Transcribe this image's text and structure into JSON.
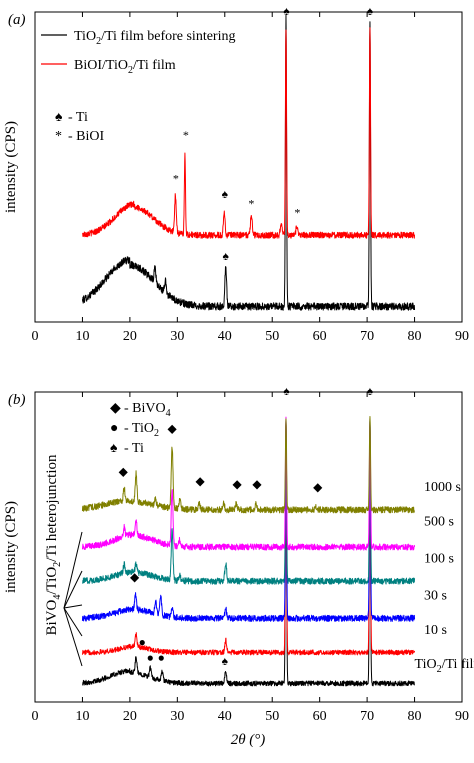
{
  "chart_data": [
    {
      "panel": "(a)",
      "type": "line",
      "xlabel": "",
      "ylabel": "intensity (CPS)",
      "xlim": [
        0,
        90
      ],
      "xticks": [
        0,
        10,
        20,
        30,
        40,
        50,
        60,
        70,
        80,
        90
      ],
      "grid": false,
      "legend_position": "top-left",
      "series": [
        {
          "name": "TiO2/Ti film before sintering",
          "color": "#000000",
          "baseline": 0.05,
          "x_range": [
            10,
            80
          ],
          "broad_humps": [
            [
              20,
              0.15,
              5
            ]
          ],
          "peaks": [
            [
              25.3,
              0.05
            ],
            [
              27.5,
              0.04
            ],
            [
              40.2,
              0.13
            ],
            [
              52.9,
              0.93
            ],
            [
              70.6,
              0.93
            ]
          ],
          "noise": 0.012
        },
        {
          "name": "BiOI/TiO2/Ti film",
          "color": "#ff0000",
          "baseline": 0.28,
          "x_range": [
            10,
            80
          ],
          "broad_humps": [
            [
              21,
              0.1,
              4
            ]
          ],
          "peaks": [
            [
              29.6,
              0.12
            ],
            [
              31.6,
              0.26
            ],
            [
              39.9,
              0.07
            ],
            [
              45.6,
              0.07
            ],
            [
              51.9,
              0.04
            ],
            [
              52.9,
              0.67
            ],
            [
              55.2,
              0.03
            ],
            [
              70.6,
              0.67
            ]
          ],
          "noise": 0.01
        }
      ],
      "annotations": [
        {
          "symbol": "♠",
          "x": 53,
          "y": 0.99
        },
        {
          "symbol": "♠",
          "x": 70.6,
          "y": 0.99
        },
        {
          "symbol": "♠",
          "x": 40.2,
          "y": 0.2
        },
        {
          "symbol": "♠",
          "x": 40,
          "y": 0.4
        },
        {
          "symbol": "*",
          "x": 29.7,
          "y": 0.45
        },
        {
          "symbol": "*",
          "x": 31.8,
          "y": 0.59
        },
        {
          "symbol": "*",
          "x": 45.6,
          "y": 0.37
        },
        {
          "symbol": "*",
          "x": 55.3,
          "y": 0.34
        }
      ],
      "markers_legend": [
        {
          "symbol": "♠",
          "label": "- Ti"
        },
        {
          "symbol": "*",
          "label": "- BiOI"
        }
      ],
      "legend": [
        {
          "label_main": "TiO",
          "label_sub": "2",
          "label_rest": "/Ti film before sintering",
          "color": "#000000"
        },
        {
          "label_main": "BiOI/TiO",
          "label_sub": "2",
          "label_rest": "/Ti film",
          "color": "#ff0000"
        }
      ]
    },
    {
      "panel": "(b)",
      "type": "line",
      "xlabel": "2θ (°)",
      "ylabel": "intensity (CPS)",
      "xlim": [
        0,
        90
      ],
      "xticks": [
        0,
        10,
        20,
        30,
        40,
        50,
        60,
        70,
        80,
        90
      ],
      "grid": false,
      "legend_position": "top-left",
      "side_label": "BiVO4/TiO2/Ti heterojunction",
      "series": [
        {
          "name": "TiO2/Ti film",
          "color": "#000000",
          "baseline": 0.06,
          "x_range": [
            10,
            80
          ],
          "broad_humps": [
            [
              20,
              0.04,
              4
            ]
          ],
          "peaks": [
            [
              21.3,
              0.05
            ],
            [
              24.3,
              0.03
            ],
            [
              26.8,
              0.03
            ],
            [
              40.2,
              0.04
            ],
            [
              52.9,
              0.85
            ],
            [
              70.6,
              0.85
            ]
          ],
          "noise": 0.008
        },
        {
          "name": "10 s",
          "color": "#ff0000",
          "baseline": 0.16,
          "x_range": [
            10,
            80
          ],
          "broad_humps": [
            [
              21,
              0.02,
              3
            ]
          ],
          "peaks": [
            [
              21.3,
              0.04
            ],
            [
              40.2,
              0.04
            ],
            [
              52.9,
              0.75
            ],
            [
              70.6,
              0.75
            ]
          ],
          "noise": 0.008
        },
        {
          "name": "30 s",
          "color": "#0000ff",
          "baseline": 0.27,
          "x_range": [
            10,
            80
          ],
          "broad_humps": [
            [
              21,
              0.03,
              4
            ]
          ],
          "peaks": [
            [
              21.2,
              0.05
            ],
            [
              25.4,
              0.04
            ],
            [
              26.5,
              0.06
            ],
            [
              28.9,
              0.03
            ],
            [
              40.2,
              0.03
            ],
            [
              52.9,
              0.64
            ],
            [
              70.6,
              0.64
            ]
          ],
          "noise": 0.01
        },
        {
          "name": "100 s",
          "color": "#008080",
          "baseline": 0.39,
          "x_range": [
            10,
            80
          ],
          "broad_humps": [
            [
              21,
              0.03,
              4
            ]
          ],
          "peaks": [
            [
              18.8,
              0.03
            ],
            [
              21.3,
              0.03
            ],
            [
              28.9,
              0.16
            ],
            [
              30.5,
              0.02
            ],
            [
              40.2,
              0.06
            ],
            [
              52.9,
              0.52
            ],
            [
              70.6,
              0.52
            ]
          ],
          "noise": 0.01
        },
        {
          "name": "500 s",
          "color": "#ff00ff",
          "baseline": 0.5,
          "x_range": [
            10,
            80
          ],
          "broad_humps": [
            [
              21,
              0.04,
              4
            ]
          ],
          "peaks": [
            [
              18.8,
              0.03
            ],
            [
              21.3,
              0.05
            ],
            [
              28.9,
              0.18
            ],
            [
              30.5,
              0.02
            ],
            [
              52.9,
              0.41
            ],
            [
              70.6,
              0.41
            ]
          ],
          "noise": 0.01
        },
        {
          "name": "1000 s",
          "color": "#808000",
          "baseline": 0.62,
          "x_range": [
            10,
            80
          ],
          "broad_humps": [
            [
              20,
              0.03,
              5
            ]
          ],
          "peaks": [
            [
              18.8,
              0.04
            ],
            [
              21.3,
              0.09
            ],
            [
              25.4,
              0.02
            ],
            [
              28.9,
              0.2
            ],
            [
              30.5,
              0.03
            ],
            [
              34.6,
              0.02
            ],
            [
              39.8,
              0.02
            ],
            [
              42.4,
              0.02
            ],
            [
              46.6,
              0.02
            ],
            [
              52.9,
              0.3
            ],
            [
              59.3,
              0.01
            ],
            [
              70.6,
              0.3
            ]
          ],
          "noise": 0.01
        }
      ],
      "curve_labels": [
        {
          "text": "TiO2/Ti film",
          "main": "TiO",
          "sub": "2",
          "rest": "/Ti film",
          "x": 80,
          "y": 0.11
        },
        {
          "text": "10 s",
          "x": 82,
          "y": 0.22
        },
        {
          "text": "30 s",
          "x": 82,
          "y": 0.33
        },
        {
          "text": "100 s",
          "x": 82,
          "y": 0.45
        },
        {
          "text": "500 s",
          "x": 82,
          "y": 0.57
        },
        {
          "text": "1000 s",
          "x": 82,
          "y": 0.68
        }
      ],
      "annotations": [
        {
          "symbol": "♠",
          "x": 53,
          "y": 0.99
        },
        {
          "symbol": "♠",
          "x": 70.6,
          "y": 0.99
        },
        {
          "symbol": "◆",
          "x": 28.9,
          "y": 0.87
        },
        {
          "symbol": "◆",
          "x": 18.6,
          "y": 0.73
        },
        {
          "symbol": "◆",
          "x": 34.8,
          "y": 0.7
        },
        {
          "symbol": "◆",
          "x": 42.6,
          "y": 0.69
        },
        {
          "symbol": "◆",
          "x": 46.8,
          "y": 0.69
        },
        {
          "symbol": "◆",
          "x": 59.6,
          "y": 0.68
        },
        {
          "symbol": "◆",
          "x": 21,
          "y": 0.39
        },
        {
          "symbol": "●",
          "x": 22.6,
          "y": 0.18
        },
        {
          "symbol": "●",
          "x": 24.3,
          "y": 0.13
        },
        {
          "symbol": "●",
          "x": 26.6,
          "y": 0.13
        },
        {
          "symbol": "♠",
          "x": 40,
          "y": 0.12
        }
      ],
      "markers_legend": [
        {
          "symbol": "◆",
          "label": "- BiVO",
          "sub": "4"
        },
        {
          "symbol": "●",
          "label": "- TiO",
          "sub": "2"
        },
        {
          "symbol": "♠",
          "label": "- Ti",
          "sub": ""
        }
      ]
    }
  ]
}
